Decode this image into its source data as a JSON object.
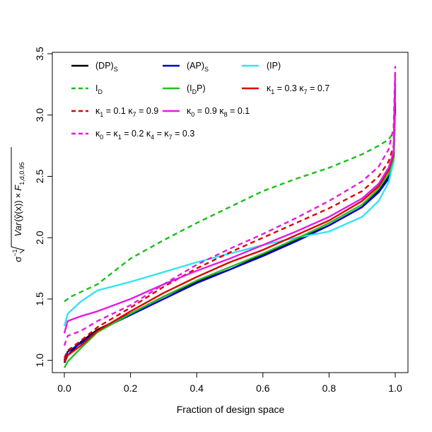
{
  "chart_data": {
    "type": "line",
    "xlabel": "Fraction of design space",
    "ylabel_parts": {
      "sigma": "σ",
      "sigma_exp": "−1",
      "var": "Var",
      "yhat_x": "ŷ(x)",
      "times": "×",
      "F": "F",
      "F_sub": "1,d,0.95"
    },
    "xlim": [
      0,
      1
    ],
    "ylim": [
      0.9,
      3.5
    ],
    "x_ticks": [
      "0.0",
      "0.2",
      "0.4",
      "0.6",
      "0.8",
      "1.0"
    ],
    "y_ticks": [
      "1.0",
      "1.5",
      "2.0",
      "2.5",
      "3.0",
      "3.5"
    ],
    "legend_position": "top-left",
    "series": [
      {
        "name": "(DP)S",
        "label_main": "(DP)",
        "label_sub": "S",
        "color": "#000000",
        "dash": "solid",
        "points": [
          [
            0.0,
            0.98
          ],
          [
            0.01,
            1.04
          ],
          [
            0.05,
            1.15
          ],
          [
            0.1,
            1.25
          ],
          [
            0.2,
            1.38
          ],
          [
            0.3,
            1.52
          ],
          [
            0.4,
            1.64
          ],
          [
            0.5,
            1.74
          ],
          [
            0.6,
            1.86
          ],
          [
            0.7,
            1.98
          ],
          [
            0.8,
            2.1
          ],
          [
            0.9,
            2.25
          ],
          [
            0.95,
            2.38
          ],
          [
            0.98,
            2.5
          ],
          [
            0.995,
            2.62
          ],
          [
            1.0,
            3.05
          ]
        ]
      },
      {
        "name": "(AP)S",
        "label_main": "(AP)",
        "label_sub": "S",
        "color": "#0000cd",
        "dash": "solid",
        "points": [
          [
            0.0,
            1.0
          ],
          [
            0.01,
            1.07
          ],
          [
            0.05,
            1.14
          ],
          [
            0.1,
            1.24
          ],
          [
            0.2,
            1.37
          ],
          [
            0.3,
            1.5
          ],
          [
            0.4,
            1.63
          ],
          [
            0.5,
            1.74
          ],
          [
            0.6,
            1.85
          ],
          [
            0.7,
            1.97
          ],
          [
            0.8,
            2.1
          ],
          [
            0.9,
            2.25
          ],
          [
            0.95,
            2.37
          ],
          [
            0.98,
            2.48
          ],
          [
            0.995,
            2.62
          ],
          [
            1.0,
            3.1
          ]
        ]
      },
      {
        "name": "(IP)",
        "label_main": "(IP)",
        "label_sub": "",
        "color": "#33e3f0",
        "dash": "solid",
        "points": [
          [
            0.0,
            1.28
          ],
          [
            0.01,
            1.38
          ],
          [
            0.05,
            1.48
          ],
          [
            0.1,
            1.57
          ],
          [
            0.2,
            1.64
          ],
          [
            0.3,
            1.72
          ],
          [
            0.4,
            1.8
          ],
          [
            0.5,
            1.87
          ],
          [
            0.6,
            1.94
          ],
          [
            0.7,
            2.0
          ],
          [
            0.8,
            2.05
          ],
          [
            0.9,
            2.17
          ],
          [
            0.95,
            2.3
          ],
          [
            0.98,
            2.45
          ],
          [
            0.995,
            2.62
          ],
          [
            1.0,
            3.0
          ]
        ]
      },
      {
        "name": "ID",
        "label_main": "I",
        "label_sub": "D",
        "color": "#18c018",
        "dash": "dashed",
        "points": [
          [
            0.0,
            1.48
          ],
          [
            0.02,
            1.52
          ],
          [
            0.1,
            1.62
          ],
          [
            0.2,
            1.83
          ],
          [
            0.3,
            1.98
          ],
          [
            0.4,
            2.12
          ],
          [
            0.5,
            2.25
          ],
          [
            0.6,
            2.38
          ],
          [
            0.7,
            2.48
          ],
          [
            0.8,
            2.57
          ],
          [
            0.9,
            2.68
          ],
          [
            0.95,
            2.75
          ],
          [
            0.98,
            2.8
          ],
          [
            1.0,
            2.88
          ]
        ]
      },
      {
        "name": "(IDP)",
        "label_main": "(I",
        "label_sub": "D",
        "label_tail": "P)",
        "color": "#22c022",
        "dash": "solid",
        "points": [
          [
            0.0,
            0.94
          ],
          [
            0.01,
            0.99
          ],
          [
            0.05,
            1.1
          ],
          [
            0.1,
            1.23
          ],
          [
            0.2,
            1.38
          ],
          [
            0.3,
            1.52
          ],
          [
            0.4,
            1.65
          ],
          [
            0.5,
            1.76
          ],
          [
            0.6,
            1.87
          ],
          [
            0.7,
            1.99
          ],
          [
            0.8,
            2.12
          ],
          [
            0.9,
            2.27
          ],
          [
            0.95,
            2.4
          ],
          [
            0.98,
            2.52
          ],
          [
            0.995,
            2.65
          ],
          [
            1.0,
            3.2
          ]
        ]
      },
      {
        "name": "κ1 = 0.3 κ7 = 0.7",
        "label_main": "κ",
        "label_sub": "1",
        "color": "#e00000",
        "dash": "solid",
        "points": [
          [
            0.0,
            0.99
          ],
          [
            0.01,
            1.04
          ],
          [
            0.05,
            1.12
          ],
          [
            0.1,
            1.24
          ],
          [
            0.2,
            1.4
          ],
          [
            0.3,
            1.55
          ],
          [
            0.4,
            1.68
          ],
          [
            0.5,
            1.8
          ],
          [
            0.6,
            1.9
          ],
          [
            0.7,
            2.02
          ],
          [
            0.8,
            2.14
          ],
          [
            0.9,
            2.3
          ],
          [
            0.95,
            2.42
          ],
          [
            0.98,
            2.55
          ],
          [
            0.995,
            2.68
          ],
          [
            1.0,
            3.25
          ]
        ]
      },
      {
        "name": "κ1 = 0.1 κ7 = 0.9",
        "label_main": "κ",
        "label_sub": "1",
        "color": "#e00000",
        "dash": "dashed",
        "points": [
          [
            0.0,
            1.02
          ],
          [
            0.01,
            1.08
          ],
          [
            0.05,
            1.16
          ],
          [
            0.1,
            1.27
          ],
          [
            0.2,
            1.43
          ],
          [
            0.3,
            1.6
          ],
          [
            0.4,
            1.75
          ],
          [
            0.5,
            1.88
          ],
          [
            0.6,
            2.0
          ],
          [
            0.7,
            2.12
          ],
          [
            0.8,
            2.24
          ],
          [
            0.9,
            2.38
          ],
          [
            0.95,
            2.5
          ],
          [
            0.98,
            2.62
          ],
          [
            0.995,
            2.75
          ],
          [
            1.0,
            3.3
          ]
        ]
      },
      {
        "name": "κ0 = 0.9 κ8 = 0.1",
        "label_main": "κ",
        "label_sub": "0",
        "color": "#e619e6",
        "dash": "solid",
        "points": [
          [
            0.0,
            1.22
          ],
          [
            0.01,
            1.32
          ],
          [
            0.05,
            1.36
          ],
          [
            0.1,
            1.4
          ],
          [
            0.2,
            1.5
          ],
          [
            0.3,
            1.62
          ],
          [
            0.4,
            1.73
          ],
          [
            0.5,
            1.83
          ],
          [
            0.6,
            1.94
          ],
          [
            0.7,
            2.05
          ],
          [
            0.8,
            2.17
          ],
          [
            0.9,
            2.32
          ],
          [
            0.95,
            2.44
          ],
          [
            0.98,
            2.57
          ],
          [
            0.995,
            2.7
          ],
          [
            1.0,
            3.35
          ]
        ]
      },
      {
        "name": "κ0 = κ1 = 0.2 κ4 = κ7 = 0.3",
        "label_main": "κ",
        "label_sub": "0",
        "color": "#e619e6",
        "dash": "dashed",
        "points": [
          [
            0.0,
            1.12
          ],
          [
            0.01,
            1.2
          ],
          [
            0.05,
            1.24
          ],
          [
            0.1,
            1.32
          ],
          [
            0.2,
            1.45
          ],
          [
            0.3,
            1.62
          ],
          [
            0.4,
            1.78
          ],
          [
            0.5,
            1.91
          ],
          [
            0.6,
            2.03
          ],
          [
            0.7,
            2.16
          ],
          [
            0.8,
            2.3
          ],
          [
            0.9,
            2.46
          ],
          [
            0.95,
            2.58
          ],
          [
            0.98,
            2.72
          ],
          [
            0.995,
            2.9
          ],
          [
            1.0,
            3.4
          ]
        ]
      }
    ],
    "legend_rows": [
      [
        "(DP)S",
        "(AP)S",
        "(IP)"
      ],
      [
        "ID",
        "(IDP)",
        "κ1 = 0.3 κ7 = 0.7"
      ],
      [
        "κ1 = 0.1 κ7 = 0.9",
        "κ0 = 0.9 κ8 = 0.1"
      ],
      [
        "κ0 = κ1 = 0.2 κ4 = κ7 = 0.3"
      ]
    ],
    "legend_labels": {
      "k1_03_k7_07": {
        "a": "κ",
        "a_sub": "1",
        "a_val": " = 0.3 ",
        "b": "κ",
        "b_sub": "7",
        "b_val": " = 0.7"
      },
      "k1_01_k7_09": {
        "a": "κ",
        "a_sub": "1",
        "a_val": " = 0.1 ",
        "b": "κ",
        "b_sub": "7",
        "b_val": " = 0.9"
      },
      "k0_09_k8_01": {
        "a": "κ",
        "a_sub": "0",
        "a_val": " = 0.9 ",
        "b": "κ",
        "b_sub": "8",
        "b_val": " = 0.1"
      },
      "k0_k1_k4_k7": {
        "a": "κ",
        "a_sub": "0",
        "mid1": " = ",
        "b": "κ",
        "b_sub": "1",
        "mid2": " = 0.2 ",
        "c": "κ",
        "c_sub": "4",
        "mid3": " = ",
        "d": "κ",
        "d_sub": "7",
        "tail": " = 0.3"
      }
    }
  }
}
